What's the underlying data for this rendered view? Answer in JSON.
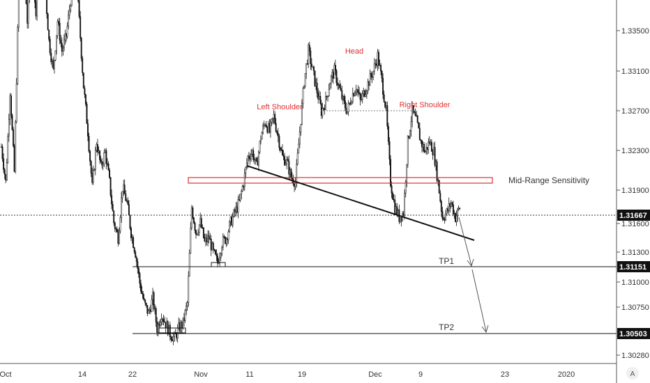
{
  "chart_data": {
    "type": "candlestick",
    "instrument_hint": "price chart with head-and-shoulders annotation",
    "y_ticks": [
      "1.33500",
      "1.33100",
      "1.32700",
      "1.32300",
      "1.31900",
      "1.31600",
      "1.31300",
      "1.31000",
      "1.30750",
      "1.30280"
    ],
    "x_ticks": [
      "Oct",
      "14",
      "22",
      "Nov",
      "11",
      "19",
      "Dec",
      "9",
      "23",
      "2020"
    ],
    "current_price": "1.31667",
    "levels": [
      {
        "name": "TP1",
        "price": "1.31151"
      },
      {
        "name": "TP2",
        "price": "1.30503"
      }
    ],
    "zone_label": "Mid-Range Sensitivity",
    "pattern_labels": {
      "left": "Left Shoulder",
      "head": "Head",
      "right": "Right Shoulder"
    },
    "axis_mode": "A",
    "close_path": [
      [
        0,
        1.3235
      ],
      [
        4,
        1.32
      ],
      [
        8,
        1.329
      ],
      [
        12,
        1.321
      ],
      [
        16,
        1.3395
      ],
      [
        20,
        1.344
      ],
      [
        24,
        1.336
      ],
      [
        28,
        1.342
      ],
      [
        32,
        1.3365
      ],
      [
        36,
        1.3445
      ],
      [
        40,
        1.34
      ],
      [
        44,
        1.334
      ],
      [
        48,
        1.331
      ],
      [
        52,
        1.336
      ],
      [
        56,
        1.333
      ],
      [
        60,
        1.3345
      ],
      [
        64,
        1.338
      ],
      [
        68,
        1.342
      ],
      [
        72,
        1.336
      ],
      [
        76,
        1.3295
      ],
      [
        80,
        1.325
      ],
      [
        84,
        1.3195
      ],
      [
        88,
        1.324
      ],
      [
        92,
        1.3215
      ],
      [
        96,
        1.323
      ],
      [
        100,
        1.32
      ],
      [
        104,
        1.316
      ],
      [
        108,
        1.3145
      ],
      [
        112,
        1.3195
      ],
      [
        116,
        1.318
      ],
      [
        120,
        1.315
      ],
      [
        124,
        1.313
      ],
      [
        128,
        1.31
      ],
      [
        132,
        1.308
      ],
      [
        136,
        1.307
      ],
      [
        140,
        1.3085
      ],
      [
        144,
        1.3055
      ],
      [
        148,
        1.307
      ],
      [
        152,
        1.306
      ],
      [
        156,
        1.305
      ],
      [
        160,
        1.3045
      ],
      [
        164,
        1.3055
      ],
      [
        168,
        1.306
      ],
      [
        172,
        1.308
      ],
      [
        176,
        1.3175
      ],
      [
        180,
        1.315
      ],
      [
        184,
        1.316
      ],
      [
        188,
        1.314
      ],
      [
        192,
        1.3145
      ],
      [
        196,
        1.313
      ],
      [
        200,
        1.312
      ],
      [
        204,
        1.314
      ],
      [
        208,
        1.3145
      ],
      [
        212,
        1.316
      ],
      [
        216,
        1.317
      ],
      [
        220,
        1.318
      ],
      [
        224,
        1.32
      ],
      [
        228,
        1.3225
      ],
      [
        232,
        1.323
      ],
      [
        236,
        1.3215
      ],
      [
        240,
        1.3245
      ],
      [
        244,
        1.326
      ],
      [
        248,
        1.325
      ],
      [
        252,
        1.3265
      ],
      [
        256,
        1.3245
      ],
      [
        260,
        1.3225
      ],
      [
        264,
        1.322
      ],
      [
        268,
        1.3205
      ],
      [
        272,
        1.32
      ],
      [
        276,
        1.325
      ],
      [
        280,
        1.33
      ],
      [
        284,
        1.333
      ],
      [
        288,
        1.331
      ],
      [
        292,
        1.329
      ],
      [
        296,
        1.327
      ],
      [
        300,
        1.328
      ],
      [
        304,
        1.33
      ],
      [
        308,
        1.331
      ],
      [
        312,
        1.3295
      ],
      [
        316,
        1.328
      ],
      [
        320,
        1.327
      ],
      [
        324,
        1.3285
      ],
      [
        328,
        1.3295
      ],
      [
        332,
        1.328
      ],
      [
        336,
        1.329
      ],
      [
        340,
        1.33
      ],
      [
        344,
        1.331
      ],
      [
        348,
        1.3325
      ],
      [
        352,
        1.33
      ],
      [
        356,
        1.327
      ],
      [
        360,
        1.32
      ],
      [
        364,
        1.3175
      ],
      [
        368,
        1.3165
      ],
      [
        372,
        1.317
      ],
      [
        376,
        1.324
      ],
      [
        380,
        1.327
      ],
      [
        384,
        1.326
      ],
      [
        388,
        1.324
      ],
      [
        392,
        1.323
      ],
      [
        396,
        1.324
      ],
      [
        400,
        1.323
      ],
      [
        404,
        1.32
      ],
      [
        408,
        1.3165
      ],
      [
        412,
        1.317
      ],
      [
        416,
        1.318
      ],
      [
        420,
        1.3165
      ],
      [
        424,
        1.3175
      ]
    ]
  }
}
